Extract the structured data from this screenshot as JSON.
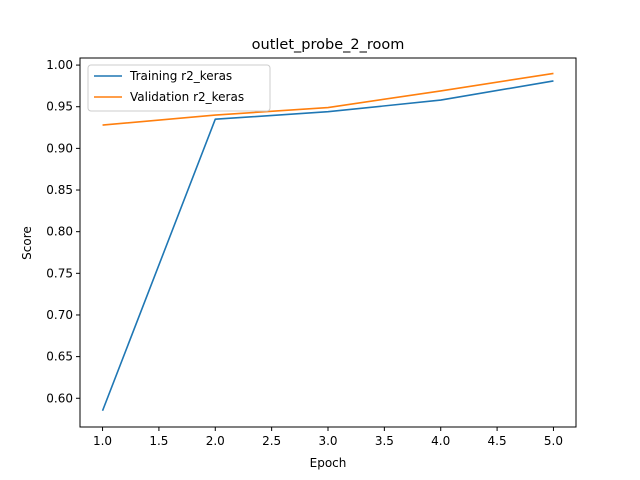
{
  "chart_data": {
    "type": "line",
    "title": "outlet_probe_2_room",
    "xlabel": "Epoch",
    "ylabel": "Score",
    "x": [
      1,
      2,
      3,
      4,
      5
    ],
    "xlim": [
      0.8,
      5.2
    ],
    "ylim": [
      0.5655,
      1.0085
    ],
    "xticks": [
      "1.0",
      "1.5",
      "2.0",
      "2.5",
      "3.0",
      "3.5",
      "4.0",
      "4.5",
      "5.0"
    ],
    "yticks": [
      "0.60",
      "0.65",
      "0.70",
      "0.75",
      "0.80",
      "0.85",
      "0.90",
      "0.95",
      "1.00"
    ],
    "grid": false,
    "legend_position": "top-left",
    "series": [
      {
        "name": "Training r2_keras",
        "color": "#1f77b4",
        "values": [
          0.585,
          0.935,
          0.944,
          0.958,
          0.981
        ]
      },
      {
        "name": "Validation r2_keras",
        "color": "#ff7f0e",
        "values": [
          0.928,
          0.94,
          0.949,
          0.969,
          0.99
        ]
      }
    ]
  }
}
